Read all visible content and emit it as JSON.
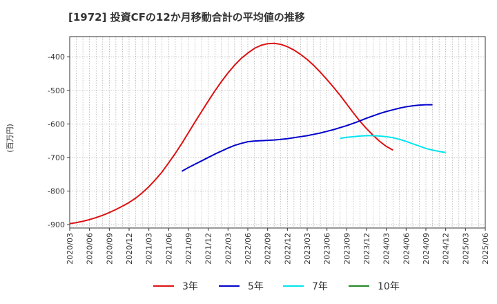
{
  "chart_data": {
    "type": "line",
    "title": "[1972]  投資CFの12か月移動合計の平均値の推移",
    "ylabel": "(百万円)",
    "xlabel": "",
    "ylim": [
      -910,
      -340
    ],
    "yticks": [
      -900,
      -800,
      -700,
      -600,
      -500,
      -400
    ],
    "ytick_labels": [
      "-900",
      "-800",
      "-700",
      "-600",
      "-500",
      "-400"
    ],
    "x_ticks": [
      "2020/03",
      "2020/06",
      "2020/09",
      "2020/12",
      "2021/03",
      "2021/06",
      "2021/09",
      "2021/12",
      "2022/03",
      "2022/06",
      "2022/09",
      "2022/12",
      "2023/03",
      "2023/06",
      "2023/09",
      "2023/12",
      "2024/03",
      "2024/06",
      "2024/09",
      "2024/12",
      "2025/03",
      "2025/06"
    ],
    "grid": true,
    "legend_position": "bottom",
    "series": [
      {
        "name": "3年",
        "color": "#dd1111",
        "start_index": 0,
        "values": [
          -897,
          -894,
          -890,
          -885,
          -879,
          -872,
          -864,
          -855,
          -845,
          -834,
          -821,
          -805,
          -787,
          -766,
          -743,
          -716,
          -688,
          -658,
          -626,
          -594,
          -563,
          -532,
          -502,
          -474,
          -448,
          -425,
          -405,
          -389,
          -375,
          -366,
          -361,
          -360,
          -363,
          -370,
          -380,
          -393,
          -408,
          -426,
          -446,
          -468,
          -491,
          -515,
          -541,
          -567,
          -592,
          -614,
          -634,
          -652,
          -667,
          -678
        ]
      },
      {
        "name": "5年",
        "color": "#0000cc",
        "start_index": 17,
        "values": [
          -741,
          -730,
          -720,
          -710,
          -700,
          -690,
          -681,
          -672,
          -664,
          -658,
          -653,
          -651,
          -650,
          -649,
          -648,
          -646,
          -644,
          -641,
          -638,
          -635,
          -631,
          -627,
          -622,
          -617,
          -611,
          -605,
          -598,
          -591,
          -583,
          -576,
          -569,
          -563,
          -558,
          -553,
          -549,
          -546,
          -544,
          -543,
          -543
        ]
      },
      {
        "name": "7年",
        "color": "#00e5ee",
        "start_index": 41,
        "values": [
          -643,
          -640,
          -638,
          -636,
          -635,
          -635,
          -636,
          -638,
          -641,
          -646,
          -652,
          -659,
          -666,
          -673,
          -678,
          -682,
          -685
        ]
      },
      {
        "name": "10年",
        "color": "#228822",
        "start_index": 0,
        "values": []
      }
    ]
  }
}
